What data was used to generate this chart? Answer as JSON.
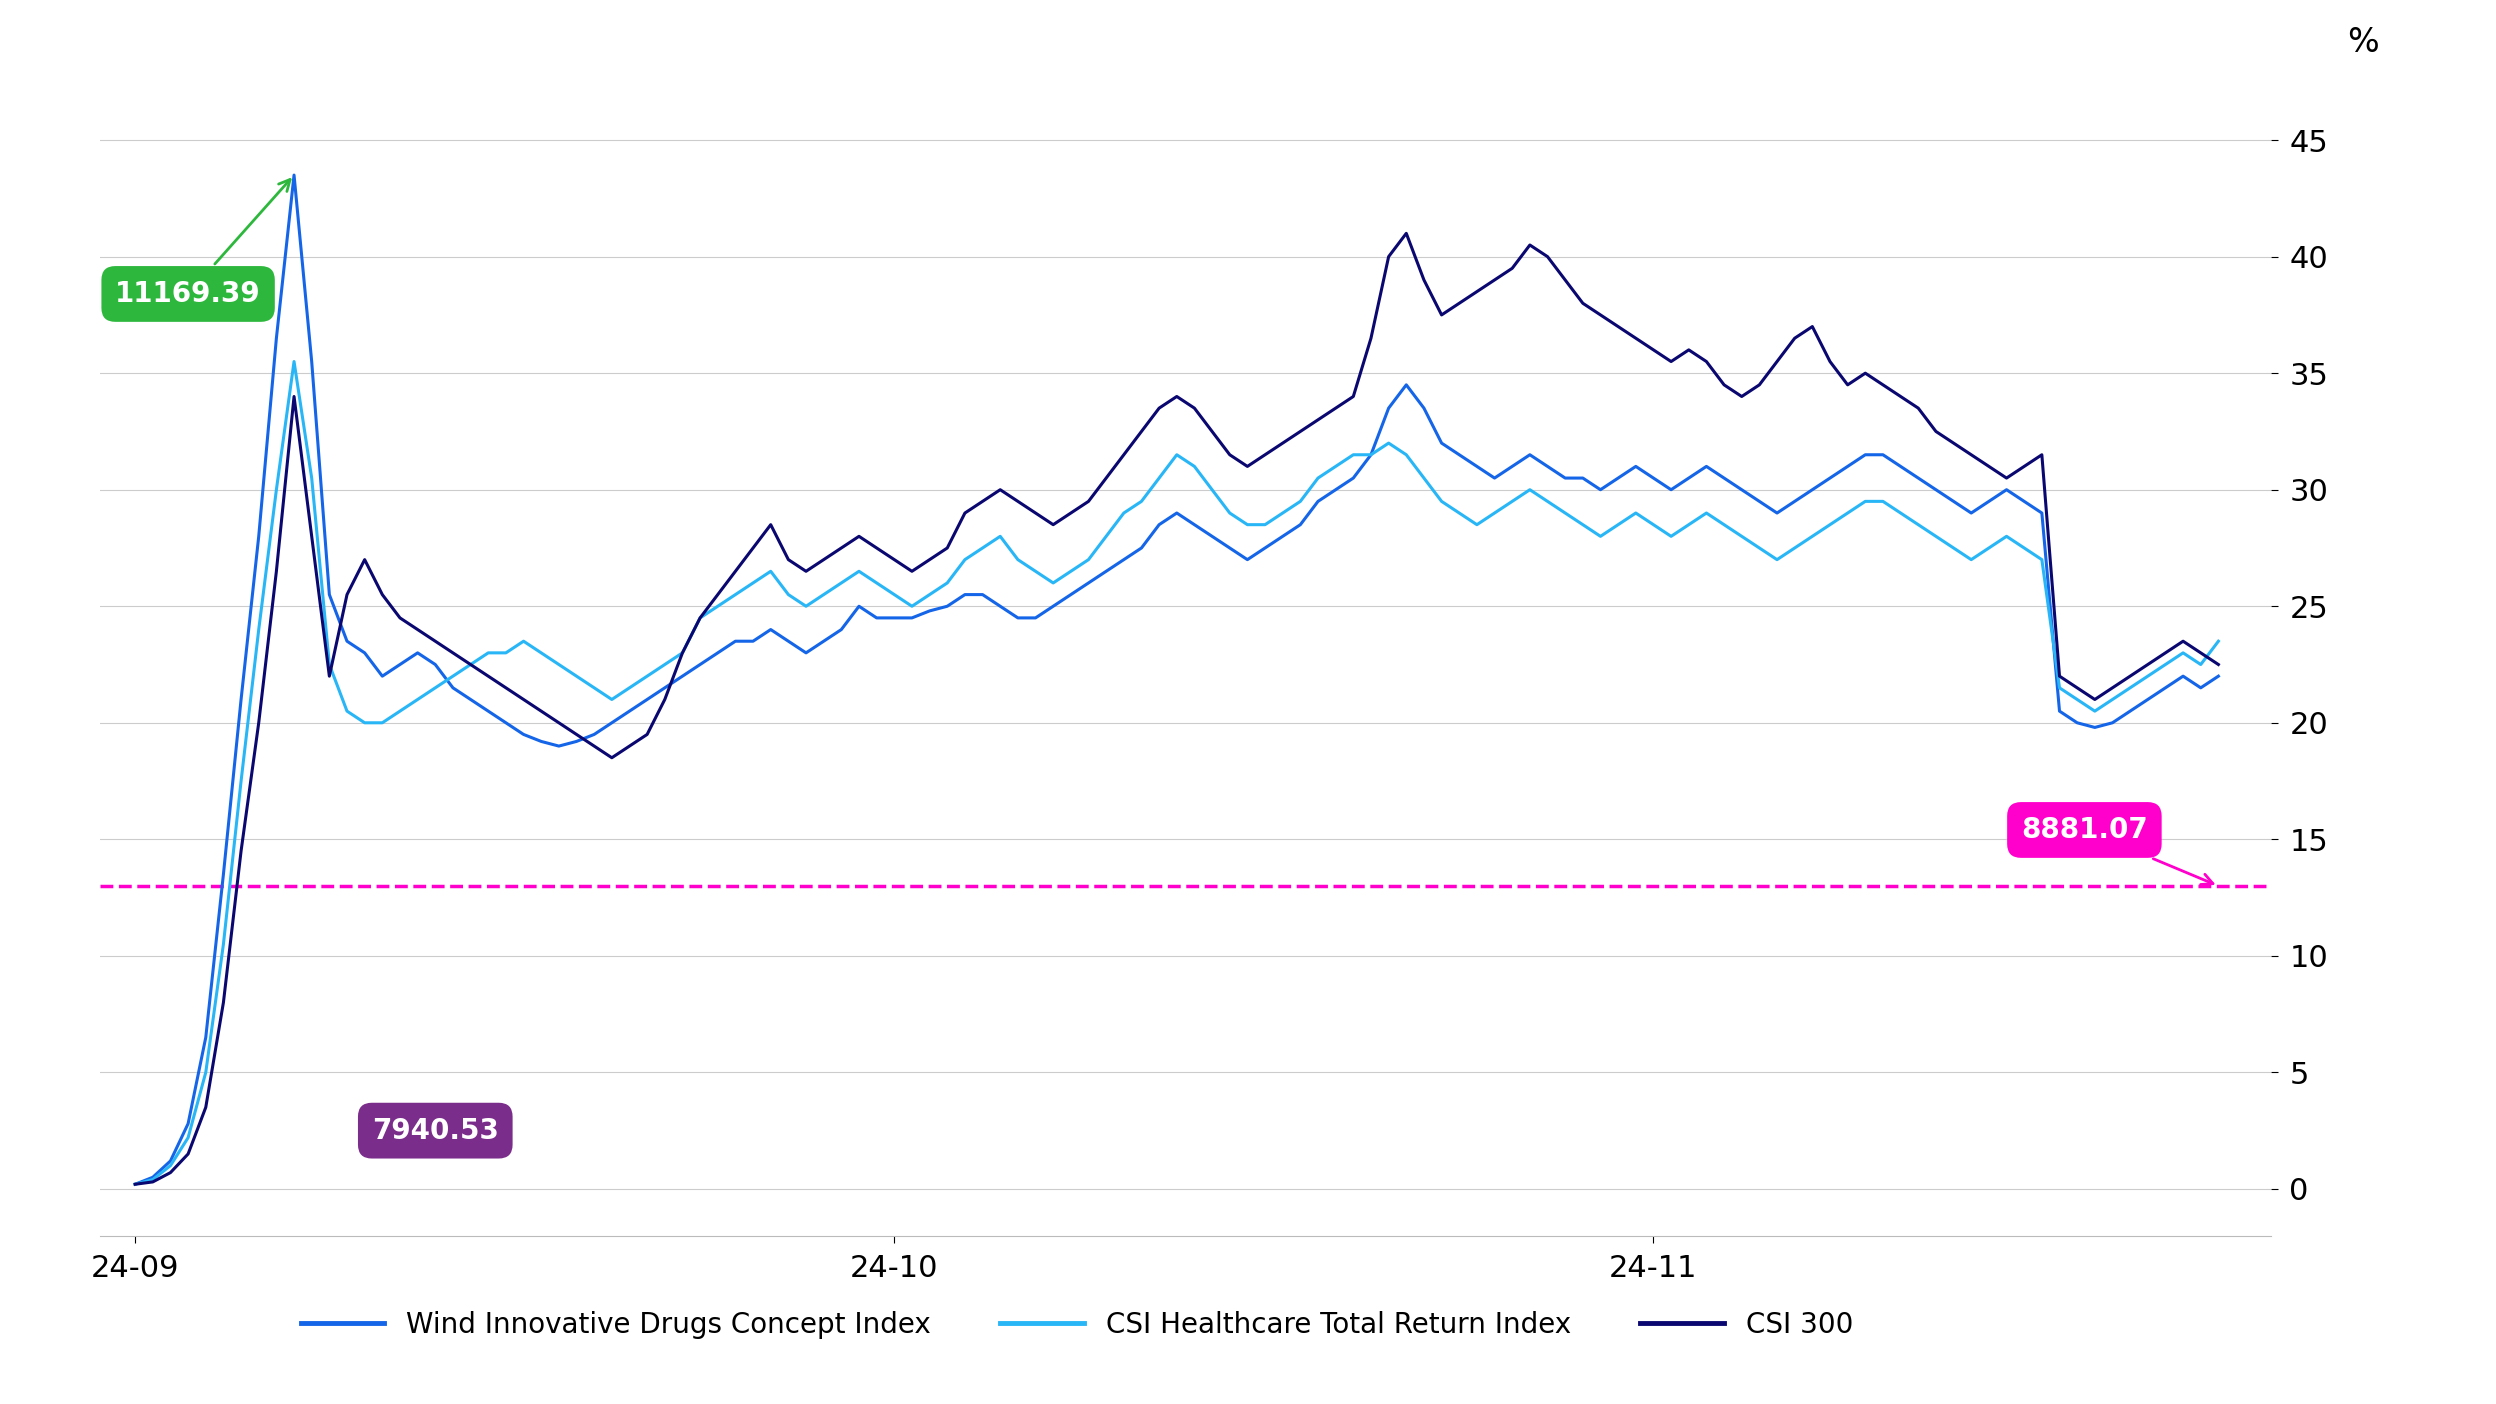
{
  "background_color": "#ffffff",
  "line_colors": {
    "wind": "#1565e8",
    "csi_health": "#29b6f6",
    "csi300": "#0a0870"
  },
  "legend_labels": [
    "Wind Innovative Drugs Concept Index",
    "CSI Healthcare Total Return Index",
    "CSI 300"
  ],
  "annotation_peak": {
    "label": "11169.39",
    "color": "#2db83d",
    "text_color": "#ffffff"
  },
  "annotation_start": {
    "label": "7940.53",
    "color": "#7b2d8b",
    "text_color": "#ffffff"
  },
  "annotation_end": {
    "label": "8881.07",
    "color": "#ff00cc",
    "text_color": "#ffffff"
  },
  "dashed_line_y": 13.0,
  "dashed_line_color": "#ff00cc",
  "ylabel_right": "%",
  "yticks_right": [
    0,
    5,
    10,
    15,
    20,
    25,
    30,
    35,
    40,
    45
  ],
  "xtick_labels": [
    "24-09",
    "24-10",
    "24-11"
  ],
  "xtick_positions": [
    0,
    43,
    86
  ],
  "wind_data": [
    0.2,
    0.5,
    1.2,
    2.8,
    6.5,
    13.5,
    21.0,
    28.0,
    36.5,
    43.5,
    35.5,
    25.5,
    23.5,
    23.0,
    22.0,
    22.5,
    23.0,
    22.5,
    21.5,
    21.0,
    20.5,
    20.0,
    19.5,
    19.2,
    19.0,
    19.2,
    19.5,
    20.0,
    20.5,
    21.0,
    21.5,
    22.0,
    22.5,
    23.0,
    23.5,
    23.5,
    24.0,
    23.5,
    23.0,
    23.5,
    24.0,
    25.0,
    24.5,
    24.5,
    24.5,
    24.8,
    25.0,
    25.5,
    25.5,
    25.0,
    24.5,
    24.5,
    25.0,
    25.5,
    26.0,
    26.5,
    27.0,
    27.5,
    28.5,
    29.0,
    28.5,
    28.0,
    27.5,
    27.0,
    27.5,
    28.0,
    28.5,
    29.5,
    30.0,
    30.5,
    31.5,
    33.5,
    34.5,
    33.5,
    32.0,
    31.5,
    31.0,
    30.5,
    31.0,
    31.5,
    31.0,
    30.5,
    30.5,
    30.0,
    30.5,
    31.0,
    30.5,
    30.0,
    30.5,
    31.0,
    30.5,
    30.0,
    29.5,
    29.0,
    29.5,
    30.0,
    30.5,
    31.0,
    31.5,
    31.5,
    31.0,
    30.5,
    30.0,
    29.5,
    29.0,
    29.5,
    30.0,
    29.5,
    29.0,
    20.5,
    20.0,
    19.8,
    20.0,
    20.5,
    21.0,
    21.5,
    22.0,
    21.5,
    22.0
  ],
  "csi_health_data": [
    0.2,
    0.4,
    1.0,
    2.2,
    5.0,
    10.5,
    17.5,
    24.0,
    30.0,
    35.5,
    30.5,
    22.5,
    20.5,
    20.0,
    20.0,
    20.5,
    21.0,
    21.5,
    22.0,
    22.5,
    23.0,
    23.0,
    23.5,
    23.0,
    22.5,
    22.0,
    21.5,
    21.0,
    21.5,
    22.0,
    22.5,
    23.0,
    24.5,
    25.0,
    25.5,
    26.0,
    26.5,
    25.5,
    25.0,
    25.5,
    26.0,
    26.5,
    26.0,
    25.5,
    25.0,
    25.5,
    26.0,
    27.0,
    27.5,
    28.0,
    27.0,
    26.5,
    26.0,
    26.5,
    27.0,
    28.0,
    29.0,
    29.5,
    30.5,
    31.5,
    31.0,
    30.0,
    29.0,
    28.5,
    28.5,
    29.0,
    29.5,
    30.5,
    31.0,
    31.5,
    31.5,
    32.0,
    31.5,
    30.5,
    29.5,
    29.0,
    28.5,
    29.0,
    29.5,
    30.0,
    29.5,
    29.0,
    28.5,
    28.0,
    28.5,
    29.0,
    28.5,
    28.0,
    28.5,
    29.0,
    28.5,
    28.0,
    27.5,
    27.0,
    27.5,
    28.0,
    28.5,
    29.0,
    29.5,
    29.5,
    29.0,
    28.5,
    28.0,
    27.5,
    27.0,
    27.5,
    28.0,
    27.5,
    27.0,
    21.5,
    21.0,
    20.5,
    21.0,
    21.5,
    22.0,
    22.5,
    23.0,
    22.5,
    23.5
  ],
  "csi300_data": [
    0.2,
    0.3,
    0.7,
    1.5,
    3.5,
    8.0,
    14.5,
    20.0,
    26.5,
    34.0,
    28.0,
    22.0,
    25.5,
    27.0,
    25.5,
    24.5,
    24.0,
    23.5,
    23.0,
    22.5,
    22.0,
    21.5,
    21.0,
    20.5,
    20.0,
    19.5,
    19.0,
    18.5,
    19.0,
    19.5,
    21.0,
    23.0,
    24.5,
    25.5,
    26.5,
    27.5,
    28.5,
    27.0,
    26.5,
    27.0,
    27.5,
    28.0,
    27.5,
    27.0,
    26.5,
    27.0,
    27.5,
    29.0,
    29.5,
    30.0,
    29.5,
    29.0,
    28.5,
    29.0,
    29.5,
    30.5,
    31.5,
    32.5,
    33.5,
    34.0,
    33.5,
    32.5,
    31.5,
    31.0,
    31.5,
    32.0,
    32.5,
    33.0,
    33.5,
    34.0,
    36.5,
    40.0,
    41.0,
    39.0,
    37.5,
    38.0,
    38.5,
    39.0,
    39.5,
    40.5,
    40.0,
    39.0,
    38.0,
    37.5,
    37.0,
    36.5,
    36.0,
    35.5,
    36.0,
    35.5,
    34.5,
    34.0,
    34.5,
    35.5,
    36.5,
    37.0,
    35.5,
    34.5,
    35.0,
    34.5,
    34.0,
    33.5,
    32.5,
    32.0,
    31.5,
    31.0,
    30.5,
    31.0,
    31.5,
    22.0,
    21.5,
    21.0,
    21.5,
    22.0,
    22.5,
    23.0,
    23.5,
    23.0,
    22.5
  ]
}
